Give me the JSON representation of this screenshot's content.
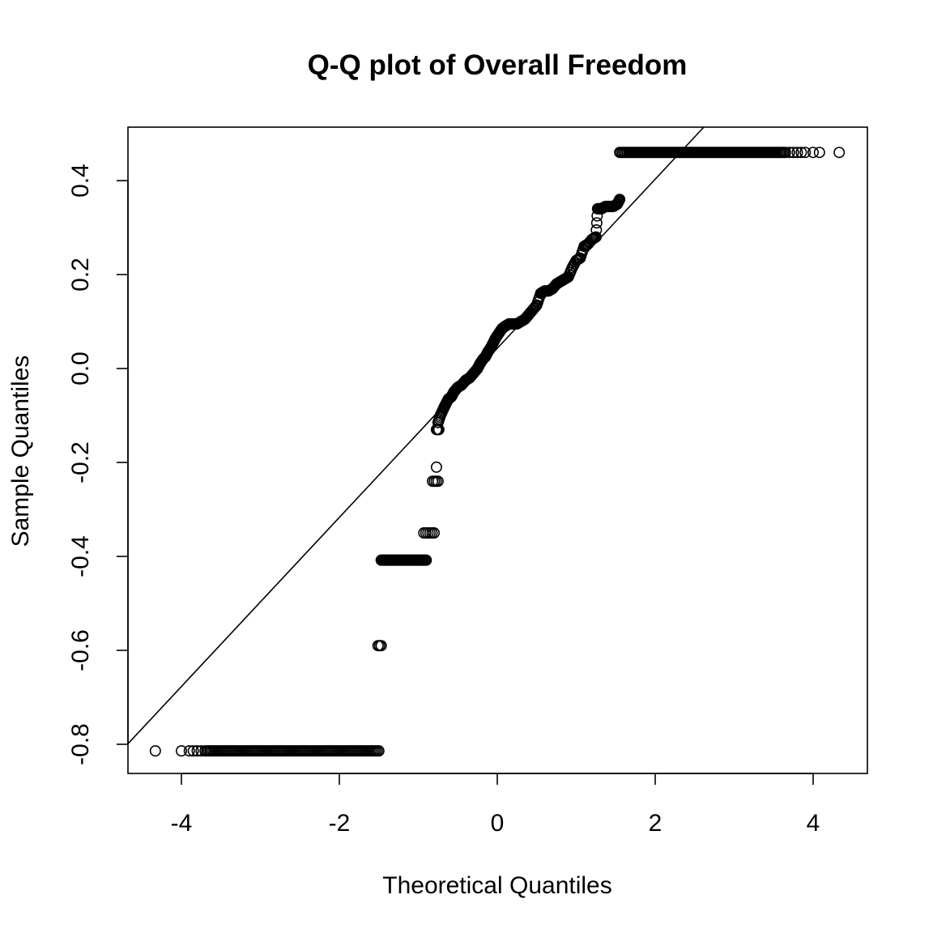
{
  "chart_data": {
    "type": "scatter",
    "title": "Q-Q plot of Overall Freedom",
    "xlabel": "Theoretical Quantiles",
    "ylabel": "Sample Quantiles",
    "xlim": [
      -4.33,
      4.33
    ],
    "ylim": [
      -0.81,
      0.46
    ],
    "x_ticks": [
      -4,
      -2,
      0,
      2,
      4
    ],
    "x_tick_labels": [
      "-4",
      "-2",
      "0",
      "2",
      "4"
    ],
    "y_ticks": [
      -0.8,
      -0.6,
      -0.4,
      -0.2,
      0.0,
      0.2,
      0.4
    ],
    "y_tick_labels": [
      "-0.8",
      "-0.6",
      "-0.4",
      "-0.2",
      "0.0",
      "0.2",
      "0.4"
    ],
    "grid": false,
    "legend": "none",
    "reference_line": {
      "intercept": 0.043,
      "slope": 0.18
    },
    "segments": [
      {
        "y": -0.814,
        "x_from": -3.7,
        "x_to": -1.5,
        "n": 110,
        "tail_left": [
          -4.33,
          -4.0,
          -3.9,
          -3.85,
          -3.8,
          -3.75
        ]
      },
      {
        "y": -0.59,
        "x_from": -1.51,
        "x_to": -1.47,
        "n": 3
      },
      {
        "y": -0.408,
        "x_from": -1.47,
        "x_to": -0.9,
        "n": 40
      },
      {
        "y": -0.35,
        "x_from": -0.93,
        "x_to": -0.8,
        "n": 6
      },
      {
        "y": -0.24,
        "x_from": -0.82,
        "x_to": -0.75,
        "n": 4
      },
      {
        "y": -0.21,
        "x_from": -0.77,
        "x_to": -0.77,
        "n": 1
      },
      {
        "y": -0.13,
        "x_from": -0.77,
        "x_to": -0.74,
        "n": 3
      },
      {
        "y": 0.46,
        "x_from": 1.55,
        "x_to": 3.65,
        "n": 110,
        "tail_right": [
          3.7,
          3.75,
          3.8,
          3.85,
          3.9,
          4.0,
          4.08,
          4.33
        ]
      }
    ],
    "curve": [
      [
        -0.75,
        -0.115
      ],
      [
        -0.72,
        -0.1
      ],
      [
        -0.68,
        -0.085
      ],
      [
        -0.65,
        -0.075
      ],
      [
        -0.62,
        -0.065
      ],
      [
        -0.58,
        -0.06
      ],
      [
        -0.55,
        -0.05
      ],
      [
        -0.5,
        -0.04
      ],
      [
        -0.45,
        -0.035
      ],
      [
        -0.4,
        -0.025
      ],
      [
        -0.35,
        -0.02
      ],
      [
        -0.3,
        -0.01
      ],
      [
        -0.25,
        0.0
      ],
      [
        -0.22,
        0.01
      ],
      [
        -0.18,
        0.02
      ],
      [
        -0.15,
        0.025
      ],
      [
        -0.12,
        0.035
      ],
      [
        -0.08,
        0.045
      ],
      [
        -0.05,
        0.055
      ],
      [
        -0.02,
        0.065
      ],
      [
        0.02,
        0.075
      ],
      [
        0.06,
        0.085
      ],
      [
        0.1,
        0.09
      ],
      [
        0.15,
        0.095
      ],
      [
        0.2,
        0.095
      ],
      [
        0.25,
        0.095
      ],
      [
        0.3,
        0.1
      ],
      [
        0.35,
        0.105
      ],
      [
        0.4,
        0.115
      ],
      [
        0.45,
        0.125
      ],
      [
        0.5,
        0.135
      ],
      [
        0.55,
        0.16
      ],
      [
        0.6,
        0.165
      ],
      [
        0.65,
        0.165
      ],
      [
        0.7,
        0.17
      ],
      [
        0.75,
        0.18
      ],
      [
        0.8,
        0.185
      ],
      [
        0.85,
        0.19
      ],
      [
        0.9,
        0.195
      ],
      [
        0.95,
        0.215
      ],
      [
        1.0,
        0.23
      ],
      [
        1.05,
        0.235
      ],
      [
        1.1,
        0.26
      ],
      [
        1.15,
        0.265
      ],
      [
        1.2,
        0.275
      ],
      [
        1.25,
        0.28
      ],
      [
        1.27,
        0.34
      ],
      [
        1.32,
        0.34
      ],
      [
        1.37,
        0.345
      ],
      [
        1.42,
        0.345
      ],
      [
        1.47,
        0.345
      ],
      [
        1.52,
        0.35
      ],
      [
        1.55,
        0.36
      ]
    ]
  }
}
